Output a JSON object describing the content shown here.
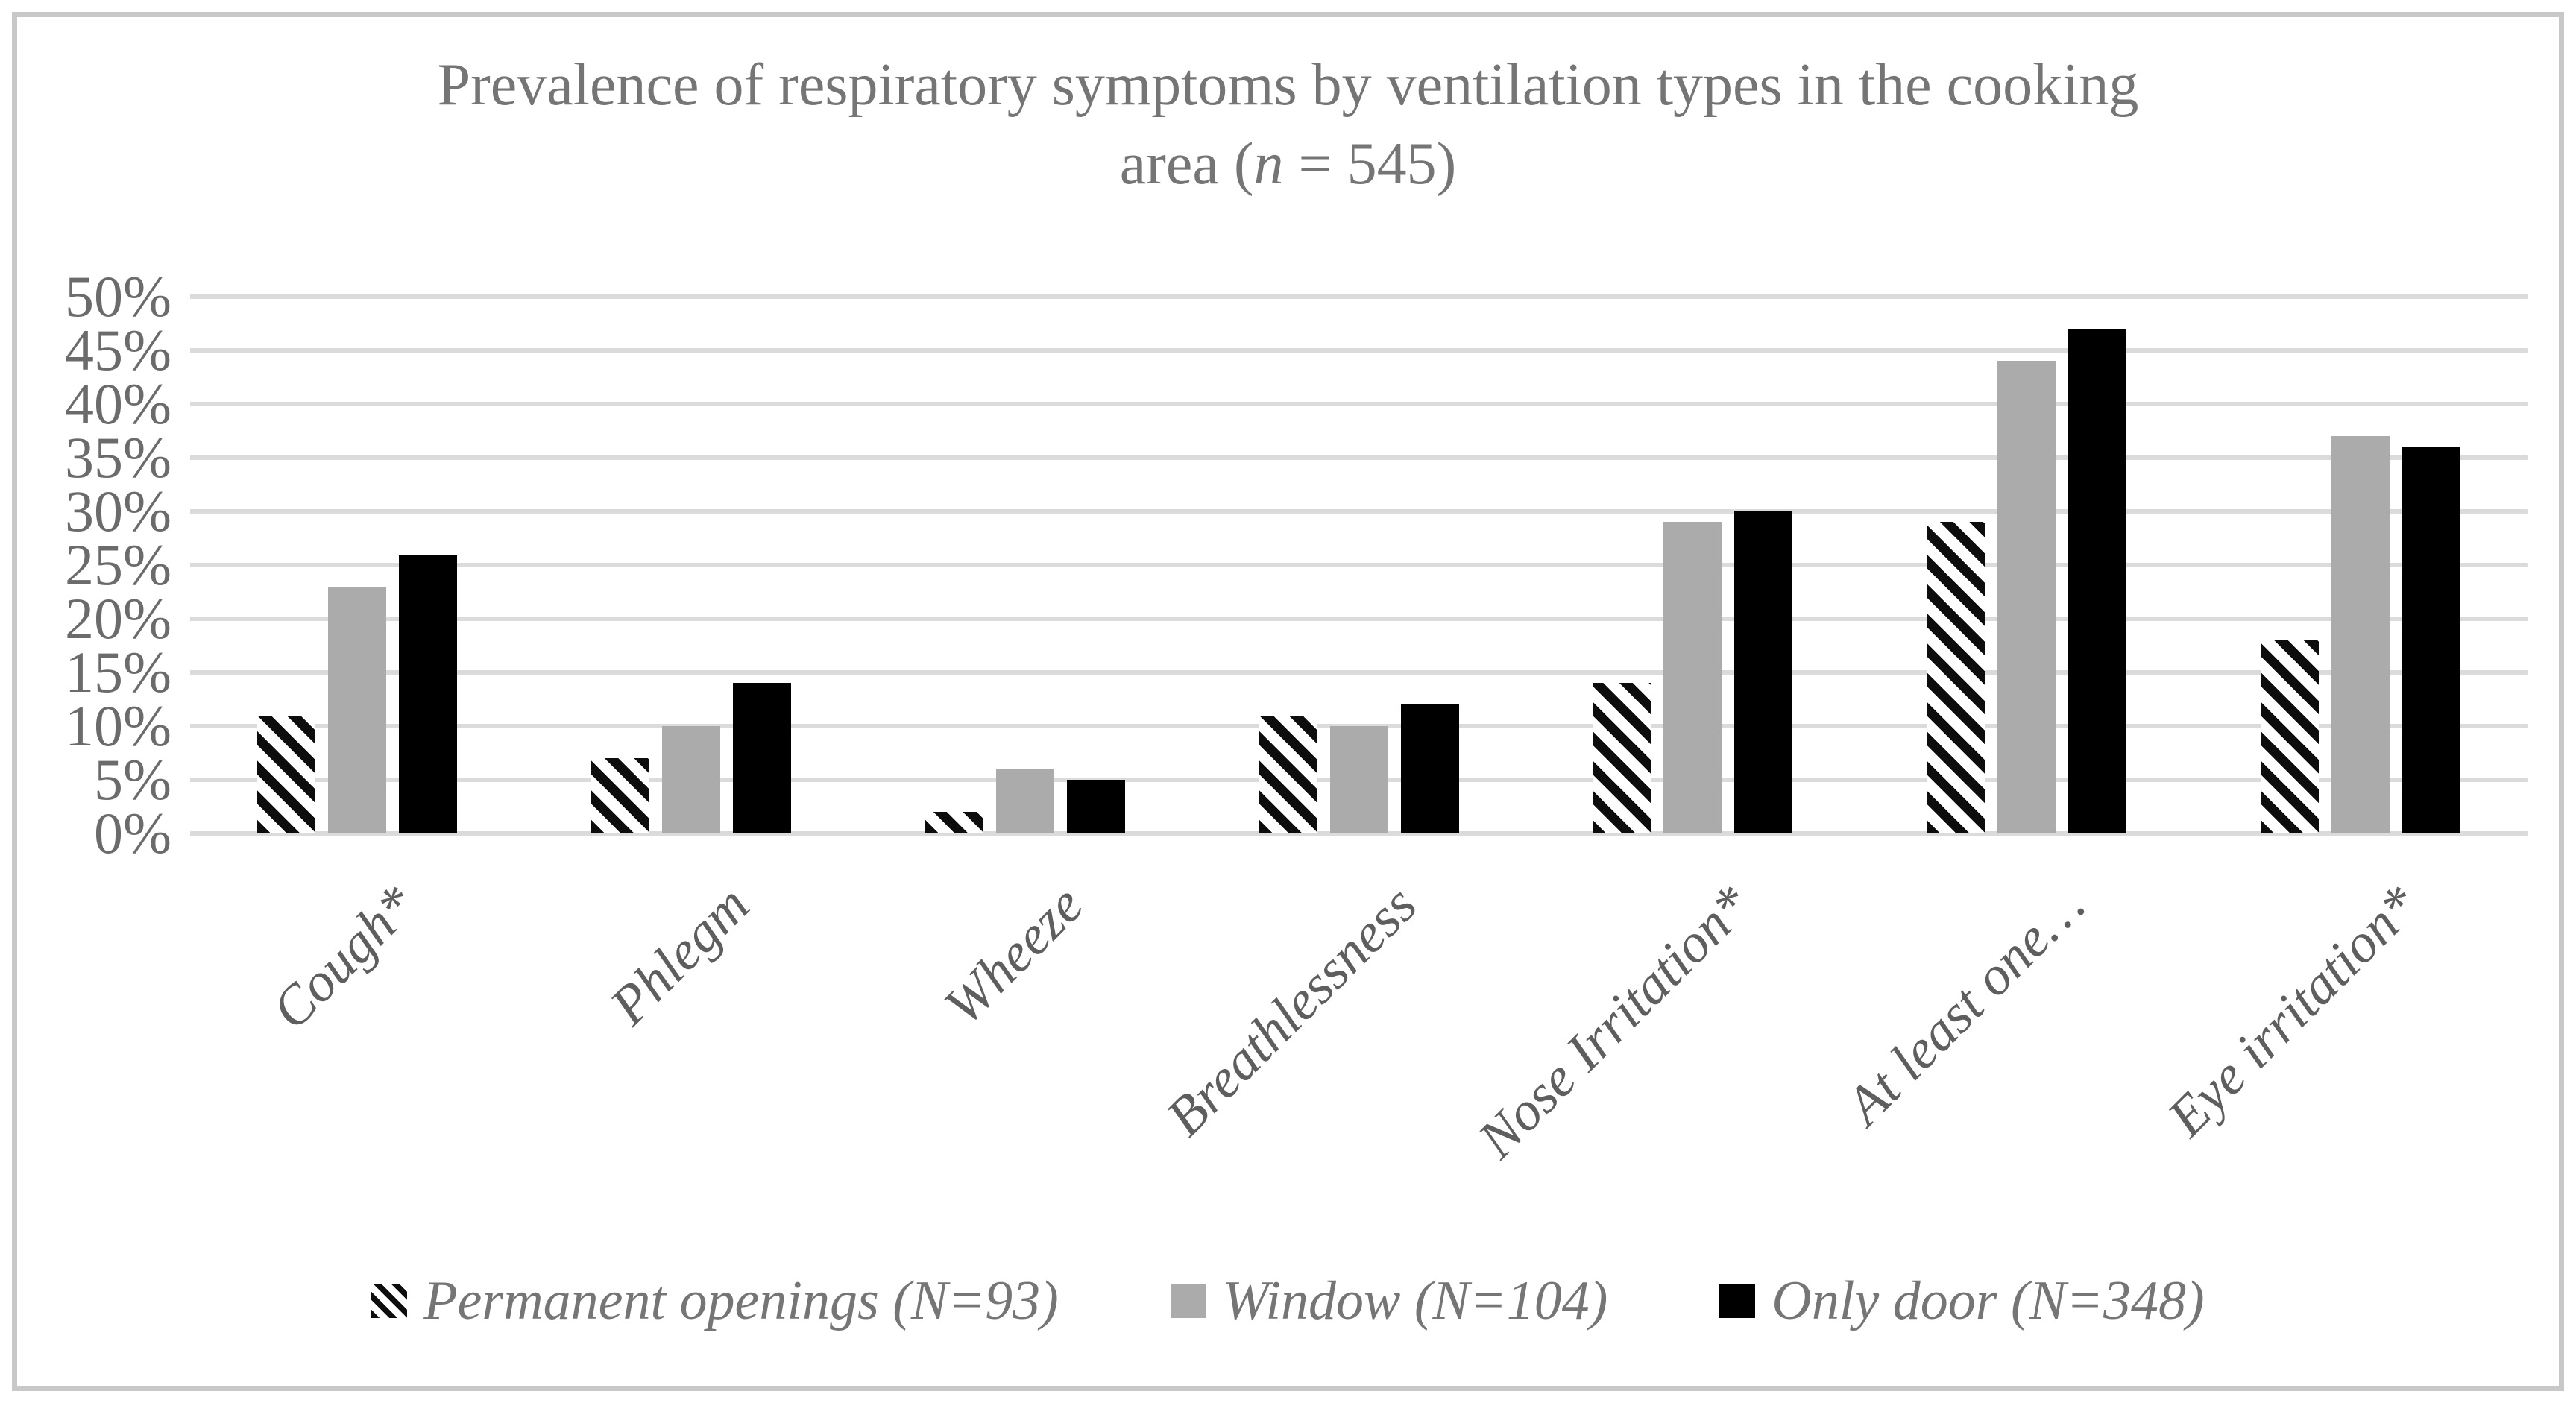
{
  "title": {
    "line1": "Prevalence of respiratory symptoms by ventilation types in the cooking",
    "line2_pre": "area (",
    "line2_var": "n",
    "line2_post": " = 545)"
  },
  "chart_data": {
    "type": "bar",
    "title": "Prevalence of respiratory symptoms by ventilation types in the cooking area (n = 545)",
    "categories": [
      "Cough*",
      "Phlegm",
      "Wheeze",
      "Breathlessness",
      "Nose Irritation*",
      "At least one…",
      "Eye irritation*"
    ],
    "series": [
      {
        "name": "Permanent openings (N=93)",
        "style": "hatched",
        "values": [
          11,
          7,
          2,
          11,
          14,
          29,
          18
        ]
      },
      {
        "name": "Window (N=104)",
        "style": "gray",
        "values": [
          23,
          10,
          6,
          10,
          29,
          44,
          37
        ]
      },
      {
        "name": "Only door (N=348)",
        "style": "black",
        "values": [
          26,
          14,
          5,
          12,
          30,
          47,
          36
        ]
      }
    ],
    "ylabel": "",
    "xlabel": "",
    "ylim": [
      0,
      50
    ],
    "ytick_step": 5,
    "yticks": [
      "0%",
      "5%",
      "10%",
      "15%",
      "20%",
      "25%",
      "30%",
      "35%",
      "40%",
      "45%",
      "50%"
    ],
    "grid": true,
    "legend_position": "bottom"
  },
  "colors": {
    "bar_gray": "#ababab",
    "bar_black": "#000000",
    "hatch_black": "#0d0d0d",
    "gridline": "#dbdbdb",
    "title_text": "#757575",
    "tick_text": "#6b6b6b",
    "category_text": "#5e5e5e",
    "legend_text": "#757575",
    "frame_border": "#c8c8c8"
  }
}
